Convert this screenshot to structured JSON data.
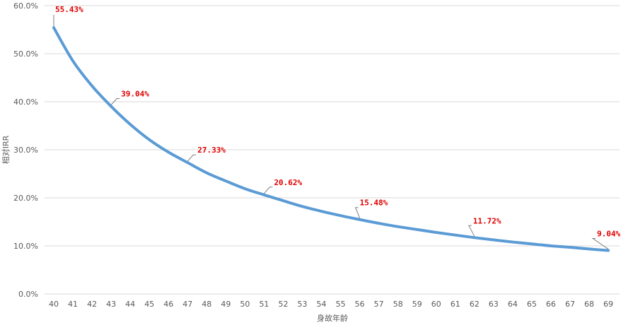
{
  "chart_data": {
    "type": "line",
    "xlabel": "身故年龄",
    "ylabel": "相对IRR",
    "ylim": [
      0,
      60
    ],
    "yticks": [
      "0.0%",
      "10.0%",
      "20.0%",
      "30.0%",
      "40.0%",
      "50.0%",
      "60.0%"
    ],
    "grid": true,
    "legend": "none",
    "line_color": "#5b9bd5",
    "label_color": "#e00000",
    "categories": [
      "40",
      "41",
      "42",
      "43",
      "44",
      "45",
      "46",
      "47",
      "48",
      "49",
      "50",
      "51",
      "52",
      "53",
      "54",
      "55",
      "56",
      "57",
      "58",
      "59",
      "60",
      "61",
      "62",
      "63",
      "64",
      "65",
      "66",
      "67",
      "68",
      "69"
    ],
    "series": [
      {
        "values": [
          55.43,
          48.5,
          43.3,
          39.04,
          35.3,
          32.1,
          29.5,
          27.33,
          25.2,
          23.5,
          21.9,
          20.62,
          19.4,
          18.2,
          17.2,
          16.3,
          15.48,
          14.7,
          14.0,
          13.4,
          12.8,
          12.25,
          11.72,
          11.25,
          10.8,
          10.4,
          10.0,
          9.7,
          9.35,
          9.04
        ]
      }
    ],
    "data_labels": [
      {
        "index": 0,
        "text": "55.43%"
      },
      {
        "index": 3,
        "text": "39.04%"
      },
      {
        "index": 7,
        "text": "27.33%"
      },
      {
        "index": 11,
        "text": "20.62%"
      },
      {
        "index": 16,
        "text": "15.48%"
      },
      {
        "index": 22,
        "text": "11.72%"
      },
      {
        "index": 29,
        "text": "9.04%"
      }
    ]
  }
}
